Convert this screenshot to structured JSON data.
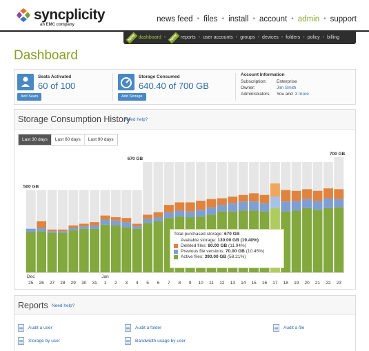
{
  "brand": {
    "name": "syncplicity",
    "sub": "an EMC company"
  },
  "topnav": [
    "news feed",
    "files",
    "install",
    "account",
    "admin",
    "support"
  ],
  "topnav_active": "admin",
  "subnav": {
    "new1": "NEW",
    "new2": "NEW",
    "items": [
      "dashboard",
      "reports",
      "user accounts",
      "groups",
      "devices",
      "folders",
      "policy",
      "billing"
    ],
    "active": "dashboard"
  },
  "page_title": "Dashboard",
  "summary": {
    "seats": {
      "label": "Seats Activated",
      "value": "60 of 100",
      "value_a": "60",
      "value_b": "100",
      "of": "of",
      "button": "Add Seats"
    },
    "storage": {
      "label": "Storage Consumed",
      "value": "640.40 of 700 GB",
      "button": "Add Storage"
    },
    "account": {
      "title": "Account Information",
      "subscription_label": "Subscription:",
      "subscription": "Enterprise",
      "owner_label": "Owner:",
      "owner": "Jim Smith",
      "admins_label": "Administrators:",
      "admins": "You and",
      "admins_more": "3 more"
    }
  },
  "history": {
    "title": "Storage Consumption History",
    "help": "Need help?",
    "tabs": [
      "Last 30 days",
      "Last 60 days",
      "Last 90 days"
    ],
    "active_tab": "Last 30 days"
  },
  "chart_data": {
    "type": "bar",
    "stacked": true,
    "ylim": [
      0,
      720
    ],
    "annotations": [
      "500 GB",
      "670 GB",
      "700 GB"
    ],
    "colors": {
      "active": "#82a83e",
      "previous": "#7f9fd2",
      "deleted": "#e0833e",
      "background": "#e6e6e6",
      "highlight_active": "#aecb62",
      "highlight_previous": "#a6c2e6",
      "highlight_deleted": "#f0a65e"
    },
    "categories": [
      "25",
      "26",
      "27",
      "28",
      "29",
      "30",
      "31",
      "1",
      "2",
      "3",
      "4",
      "5",
      "6",
      "7",
      "8",
      "9",
      "10",
      "11",
      "12",
      "13",
      "14",
      "15",
      "16",
      "17",
      "18",
      "19",
      "20",
      "21",
      "22",
      "23"
    ],
    "month_labels": [
      {
        "index": 0,
        "label": "Dec"
      },
      {
        "index": 7,
        "label": "Jan"
      }
    ],
    "capacity": [
      500,
      500,
      500,
      500,
      500,
      500,
      500,
      500,
      500,
      500,
      500,
      670,
      670,
      670,
      670,
      670,
      670,
      670,
      670,
      670,
      670,
      670,
      670,
      670,
      670,
      670,
      670,
      670,
      670,
      700
    ],
    "series": [
      {
        "name": "Active files",
        "values": [
          245,
          250,
          240,
          240,
          255,
          265,
          265,
          290,
          285,
          275,
          265,
          300,
          310,
          330,
          340,
          335,
          340,
          350,
          370,
          370,
          375,
          375,
          370,
          390,
          370,
          375,
          390,
          380,
          390,
          395
        ]
      },
      {
        "name": "Previous file versions",
        "values": [
          20,
          20,
          10,
          10,
          15,
          15,
          20,
          30,
          30,
          30,
          15,
          25,
          25,
          35,
          35,
          35,
          40,
          45,
          40,
          50,
          55,
          55,
          50,
          70,
          60,
          60,
          55,
          55,
          60,
          50
        ]
      },
      {
        "name": "Deleted files",
        "values": [
          0,
          40,
          10,
          10,
          15,
          15,
          20,
          25,
          20,
          25,
          15,
          25,
          30,
          45,
          50,
          55,
          55,
          50,
          40,
          40,
          40,
          50,
          50,
          80,
          70,
          60,
          60,
          60,
          60,
          60
        ]
      }
    ],
    "highlight_index": 23
  },
  "tooltip": {
    "total": "Total purchased storage:",
    "total_val": "670 GB",
    "available": "Available storage:",
    "available_val": "130.00 GB (19.40%)",
    "deleted": "Deleted files:",
    "deleted_val": "80.00 GB",
    "deleted_pct": "(11.94%)",
    "previous": "Previous file versions:",
    "previous_val": "70.00 GB",
    "previous_pct": "(10.45%)",
    "active": "Active files:",
    "active_val": "390.00 GB",
    "active_pct": "(58.21%)"
  },
  "reports": {
    "title": "Reports",
    "help": "Need help?",
    "links": [
      "Audit a user",
      "Audit a folder",
      "Audit a file",
      "Storage by user",
      "Bandwidth usage by user"
    ]
  }
}
